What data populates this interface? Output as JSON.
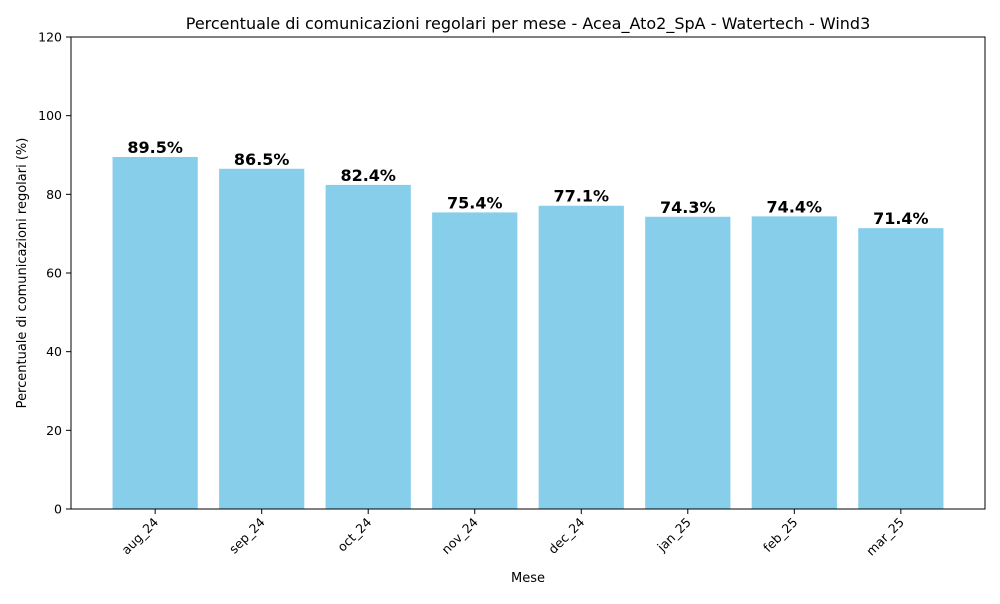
{
  "chart_data": {
    "type": "bar",
    "title": "Percentuale di comunicazioni regolari per mese - Acea_Ato2_SpA - Watertech - Wind3",
    "xlabel": "Mese",
    "ylabel": "Percentuale di comunicazioni regolari (%)",
    "categories": [
      "aug_24",
      "sep_24",
      "oct_24",
      "nov_24",
      "dec_24",
      "jan_25",
      "feb_25",
      "mar_25"
    ],
    "values": [
      89.5,
      86.5,
      82.4,
      75.4,
      77.1,
      74.3,
      74.4,
      71.4
    ],
    "data_labels": [
      "89.5%",
      "86.5%",
      "82.4%",
      "75.4%",
      "77.1%",
      "74.3%",
      "74.4%",
      "71.4%"
    ],
    "yticks": [
      0,
      20,
      40,
      60,
      80,
      100,
      120
    ],
    "ylim": [
      0,
      120
    ],
    "grid": false,
    "colors": {
      "bar": "#87ceeb",
      "axis": "#000000",
      "text": "#000000"
    }
  }
}
